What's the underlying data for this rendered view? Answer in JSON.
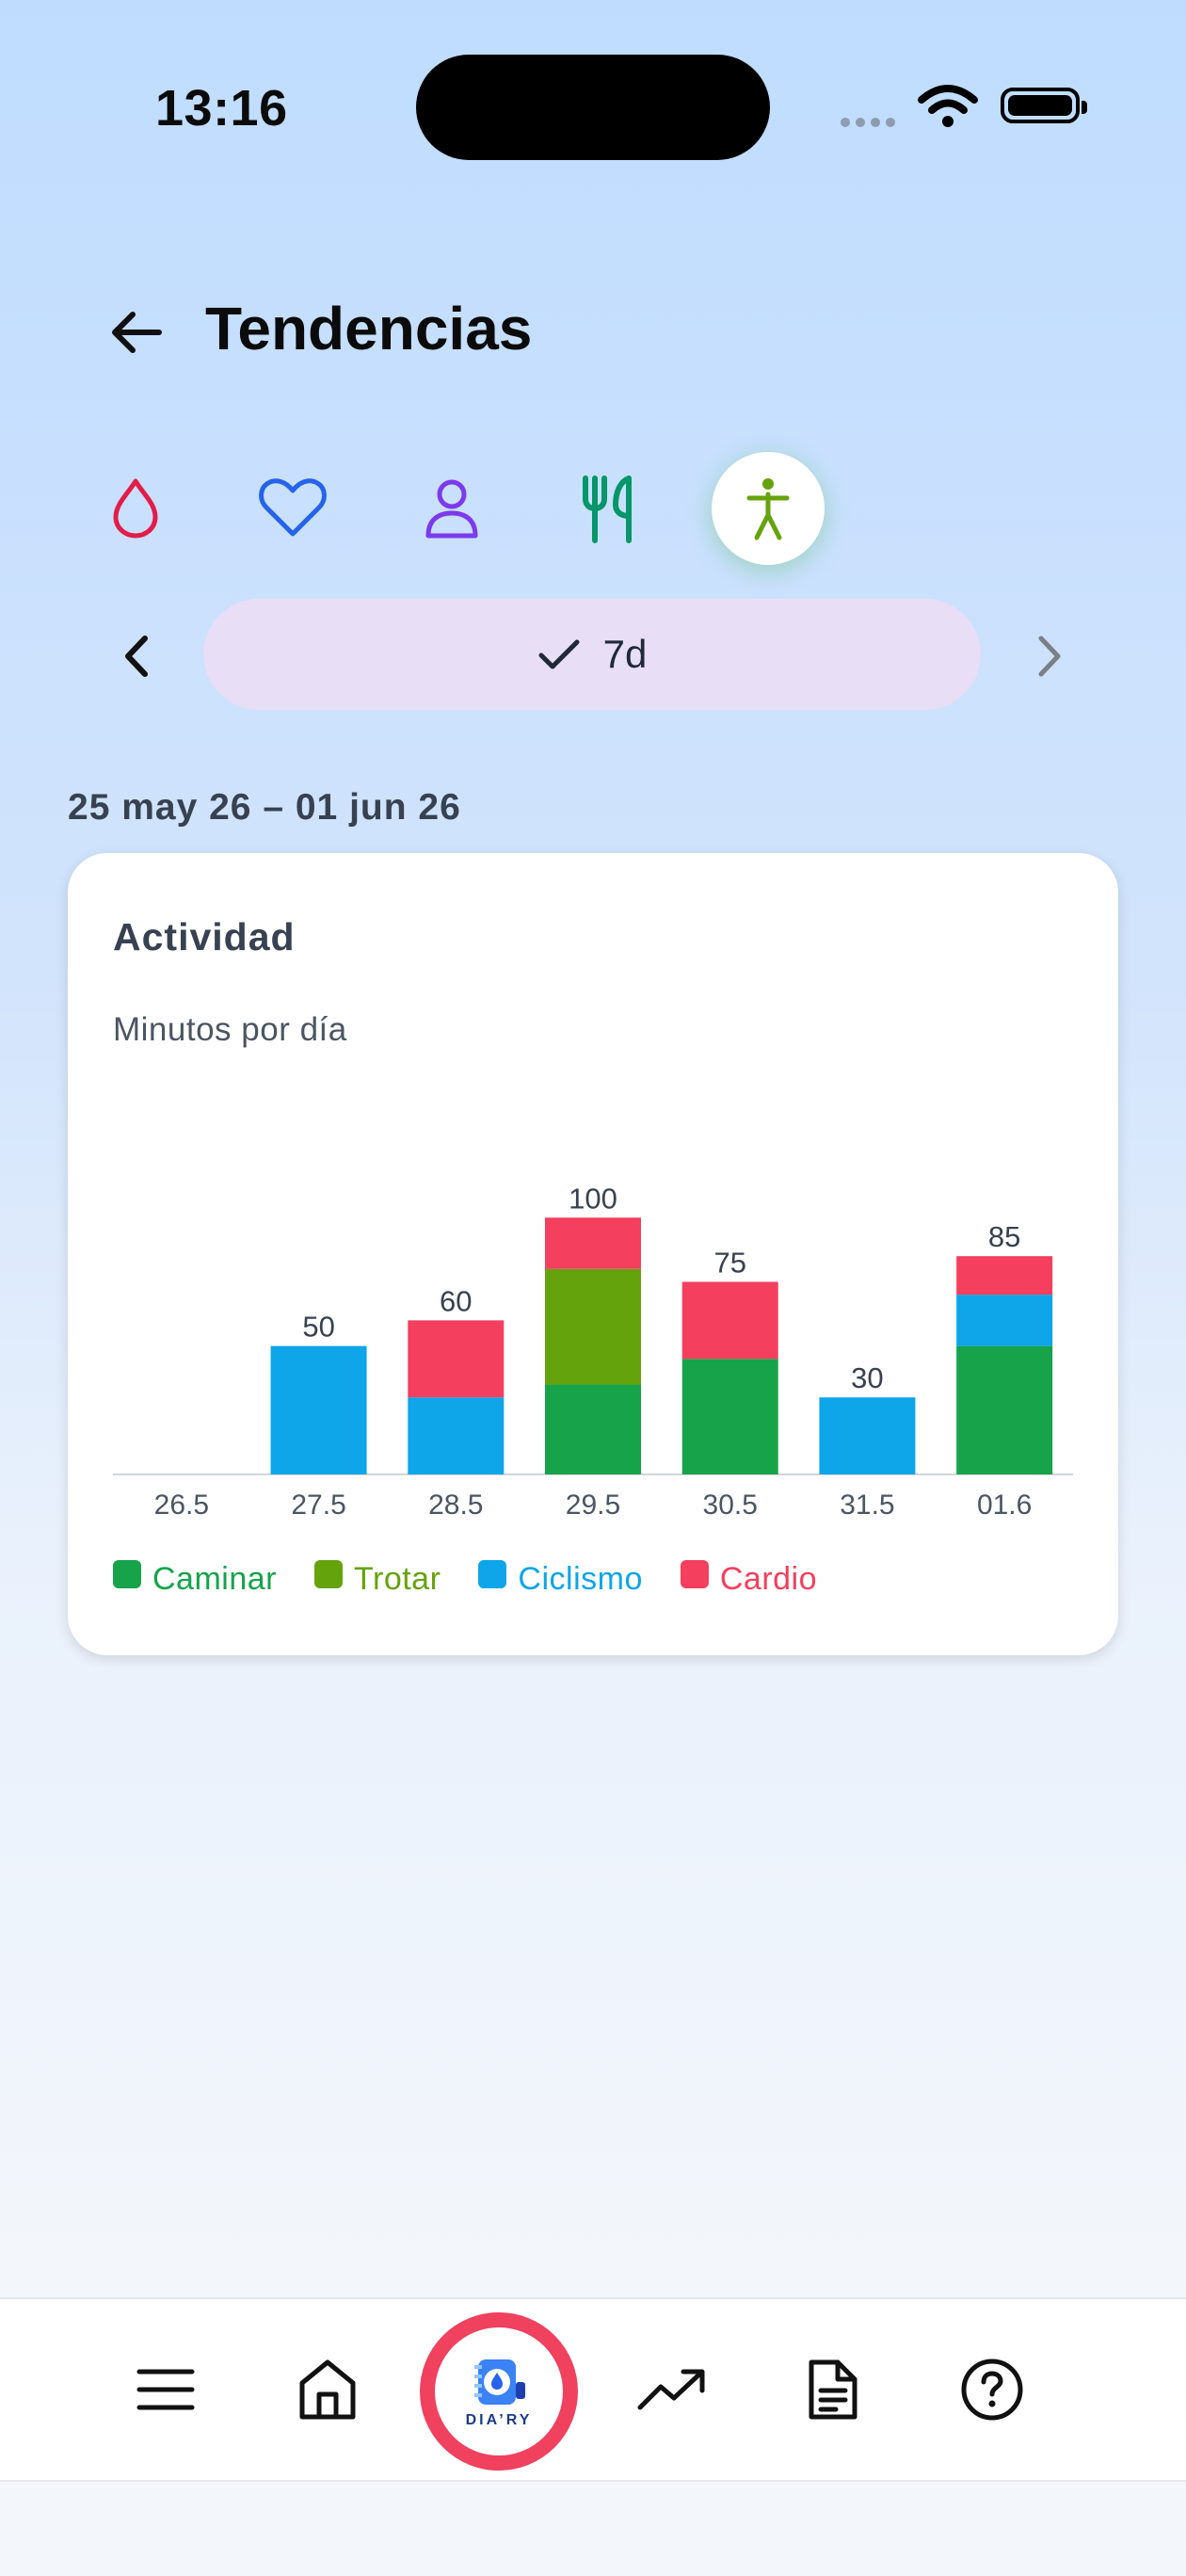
{
  "status_bar": {
    "time": "13:16"
  },
  "header": {
    "title": "Tendencias"
  },
  "categories": [
    {
      "name": "glucose",
      "icon": "drop-icon",
      "color": "#e11d48",
      "active": false
    },
    {
      "name": "heart",
      "icon": "heart-icon",
      "color": "#2563eb",
      "active": false
    },
    {
      "name": "person",
      "icon": "person-icon",
      "color": "#7c3aed",
      "active": false
    },
    {
      "name": "food",
      "icon": "utensils-icon",
      "color": "#059669",
      "active": false
    },
    {
      "name": "activity",
      "icon": "activity-figure-icon",
      "color": "#65a30d",
      "active": true
    }
  ],
  "period": {
    "label": "7d"
  },
  "date_range": "25 may 26 – 01 jun 26",
  "card": {
    "title": "Actividad",
    "subtitle": "Minutos por día"
  },
  "colors": {
    "Caminar": "#16a34a",
    "Trotar": "#65a30d",
    "Ciclismo": "#0ea5e9",
    "Cardio": "#f43f5e"
  },
  "chart_data": {
    "type": "bar",
    "stacked": true,
    "title": "Actividad",
    "subtitle": "Minutos por día",
    "categories": [
      "26.5",
      "27.5",
      "28.5",
      "29.5",
      "30.5",
      "31.5",
      "01.6"
    ],
    "series": [
      {
        "name": "Caminar",
        "values": [
          0,
          0,
          0,
          35,
          45,
          0,
          50
        ]
      },
      {
        "name": "Trotar",
        "values": [
          0,
          0,
          0,
          45,
          0,
          0,
          0
        ]
      },
      {
        "name": "Ciclismo",
        "values": [
          0,
          50,
          30,
          0,
          0,
          30,
          20
        ]
      },
      {
        "name": "Cardio",
        "values": [
          0,
          0,
          30,
          20,
          30,
          0,
          15
        ]
      }
    ],
    "totals": [
      "",
      "50",
      "60",
      "100",
      "75",
      "30",
      "85"
    ],
    "ylim": [
      0,
      110
    ],
    "grid": false,
    "legend_position": "bottom"
  },
  "bottom_nav": [
    {
      "name": "menu",
      "icon": "menu-icon"
    },
    {
      "name": "home",
      "icon": "home-icon"
    },
    {
      "name": "diary",
      "icon": "diary-logo-icon",
      "logo_text": "DIA’RY"
    },
    {
      "name": "trends",
      "icon": "trending-up-icon"
    },
    {
      "name": "documents",
      "icon": "document-icon"
    },
    {
      "name": "help",
      "icon": "help-icon"
    }
  ]
}
